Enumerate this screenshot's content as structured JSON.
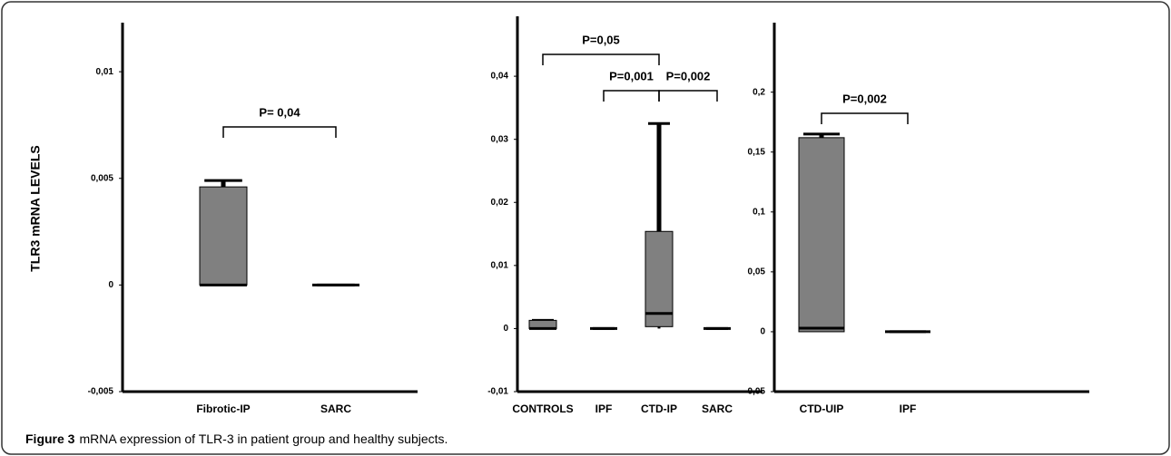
{
  "chart_data": [
    {
      "type": "box",
      "y_label": "TLR3  mRNA  LEVELS",
      "categories": [
        "Fibrotic-IP",
        "SARC"
      ],
      "boxes": [
        {
          "min": 0,
          "q1": 0,
          "median": 0,
          "q3": 0.0046,
          "max": 0.0049
        },
        {
          "min": 0,
          "q1": 0,
          "median": 0,
          "q3": 0,
          "max": 0
        }
      ],
      "color": "#808080",
      "ylim": [
        -0.005,
        0.0123
      ],
      "yticks": [
        {
          "value": -0.005,
          "label": "-0,005"
        },
        0,
        {
          "value": 0.005,
          "label": "0,005"
        },
        {
          "value": 0.01,
          "label": "0,01"
        }
      ],
      "annotations": [
        "P= 0,04"
      ]
    },
    {
      "type": "box",
      "categories": [
        "CONTROLS",
        "IPF",
        "CTD-IP",
        "SARC"
      ],
      "boxes": [
        {
          "min": 0,
          "q1": 0,
          "median": 0,
          "q3": 0.0013,
          "max": 0.0013
        },
        {
          "min": 0,
          "q1": 0,
          "median": 0,
          "q3": 0,
          "max": 0
        },
        {
          "min": 0,
          "q1": 0.0003,
          "median": 0.0024,
          "q3": 0.0154,
          "max": 0.0325
        },
        {
          "min": 0,
          "q1": 0,
          "median": 0,
          "q3": 0,
          "max": 0
        }
      ],
      "color": "#808080",
      "ylim": [
        -0.01,
        0.0495
      ],
      "yticks": [
        {
          "value": -0.01,
          "label": "-0,01"
        },
        0,
        {
          "value": 0.01,
          "label": "0,01"
        },
        {
          "value": 0.02,
          "label": "0,02"
        },
        {
          "value": 0.03,
          "label": "0,03"
        },
        {
          "value": 0.04,
          "label": "0,04"
        }
      ],
      "annotations": [
        "P=0,05",
        "P=0,001",
        "P=0,002"
      ]
    },
    {
      "type": "box",
      "categories": [
        "CTD-UIP",
        "IPF"
      ],
      "boxes": [
        {
          "min": 0,
          "q1": 0,
          "median": 0.003,
          "q3": 0.162,
          "max": 0.165
        },
        {
          "min": 0,
          "q1": 0,
          "median": 0,
          "q3": 0,
          "max": 0
        }
      ],
      "color": "#808080",
      "ylim": [
        -0.05,
        0.258
      ],
      "yticks": [
        {
          "value": -0.05,
          "label": "-0,05"
        },
        0,
        {
          "value": 0.05,
          "label": "0,05"
        },
        {
          "value": 0.1,
          "label": "0,1"
        },
        {
          "value": 0.15,
          "label": "0,15"
        },
        {
          "value": 0.2,
          "label": "0,2"
        }
      ],
      "annotations": [
        "P=0,002"
      ]
    }
  ],
  "caption": {
    "label": "Figure 3",
    "text": "mRNA expression of TLR-3 in patient group and healthy subjects."
  }
}
